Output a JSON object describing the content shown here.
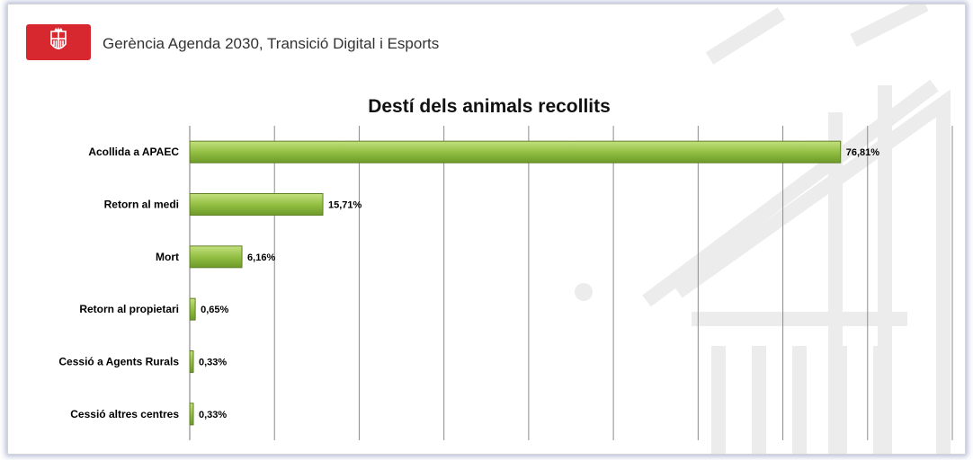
{
  "header": {
    "organization": "Gerència Agenda 2030, Transició Digital i Esports",
    "logo_icon": "barcelona-shield-icon"
  },
  "colors": {
    "bar_fill": "#8fbc3f",
    "bar_fill_light": "#b5d96a",
    "bar_stroke": "#5f7f25",
    "logo_red": "#d7282f",
    "grid": "#8c8c8c"
  },
  "chart_data": {
    "type": "bar",
    "orientation": "horizontal",
    "title": "Destí dels animals recollits",
    "xlabel": "",
    "ylabel": "",
    "categories": [
      "Acollida a APAEC",
      "Retorn al medi",
      "Mort",
      "Retorn al propietari",
      "Cessió a Agents Rurals",
      "Cessió altres centres"
    ],
    "values": [
      76.81,
      15.71,
      6.16,
      0.65,
      0.33,
      0.33
    ],
    "value_labels": [
      "76,81%",
      "15,71%",
      "6,16%",
      "0,65%",
      "0,33%",
      "0,33%"
    ],
    "xlim": [
      0,
      90
    ],
    "grid": true,
    "legend": "none"
  }
}
